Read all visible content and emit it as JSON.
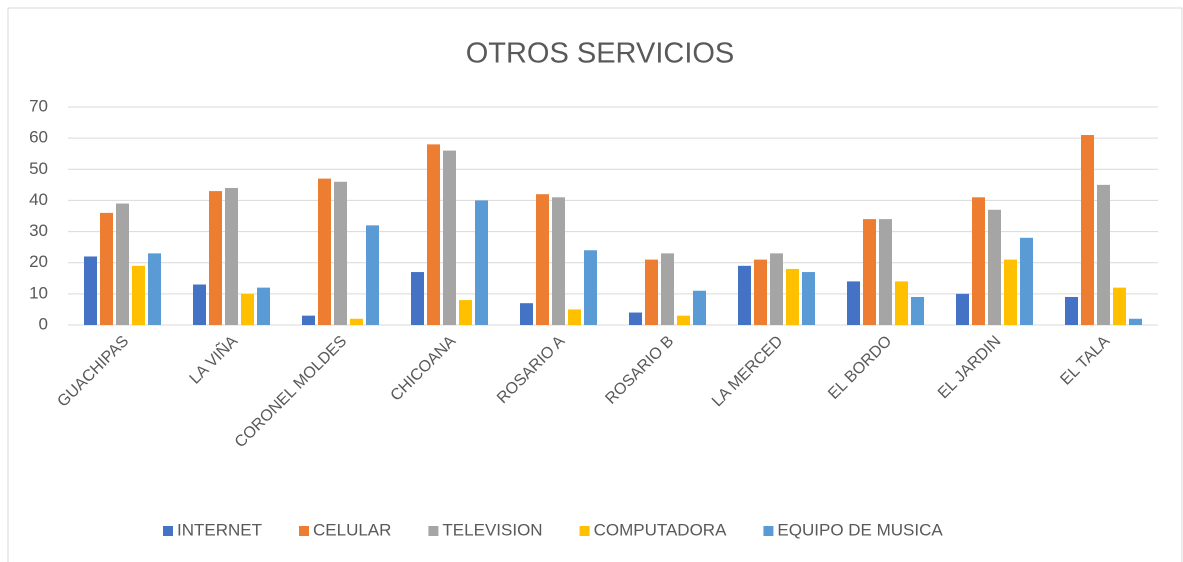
{
  "chart_data": {
    "type": "bar",
    "title": "OTROS SERVICIOS",
    "categories": [
      "GUACHIPAS",
      "LA VIÑA",
      "CORONEL MOLDES",
      "CHICOANA",
      "ROSARIO A",
      "ROSARIO B",
      "LA MERCED",
      "EL BORDO",
      "EL JARDIN",
      "EL TALA"
    ],
    "series": [
      {
        "name": "INTERNET",
        "color": "#4472c4",
        "values": [
          22,
          13,
          3,
          17,
          7,
          4,
          19,
          14,
          10,
          9
        ]
      },
      {
        "name": "CELULAR",
        "color": "#ed7d31",
        "values": [
          36,
          43,
          47,
          58,
          42,
          21,
          21,
          34,
          41,
          61
        ]
      },
      {
        "name": "TELEVISION",
        "color": "#a5a5a5",
        "values": [
          39,
          44,
          46,
          56,
          41,
          23,
          23,
          34,
          37,
          45
        ]
      },
      {
        "name": "COMPUTADORA",
        "color": "#ffc000",
        "values": [
          19,
          10,
          2,
          8,
          5,
          3,
          18,
          14,
          21,
          12
        ]
      },
      {
        "name": "EQUIPO DE MUSICA",
        "color": "#5b9bd5",
        "values": [
          23,
          12,
          32,
          40,
          24,
          11,
          17,
          9,
          28,
          2
        ]
      }
    ],
    "ylim": [
      0,
      70
    ],
    "yticks": [
      0,
      10,
      20,
      30,
      40,
      50,
      60,
      70
    ],
    "grid": true,
    "legend": "bottom"
  }
}
